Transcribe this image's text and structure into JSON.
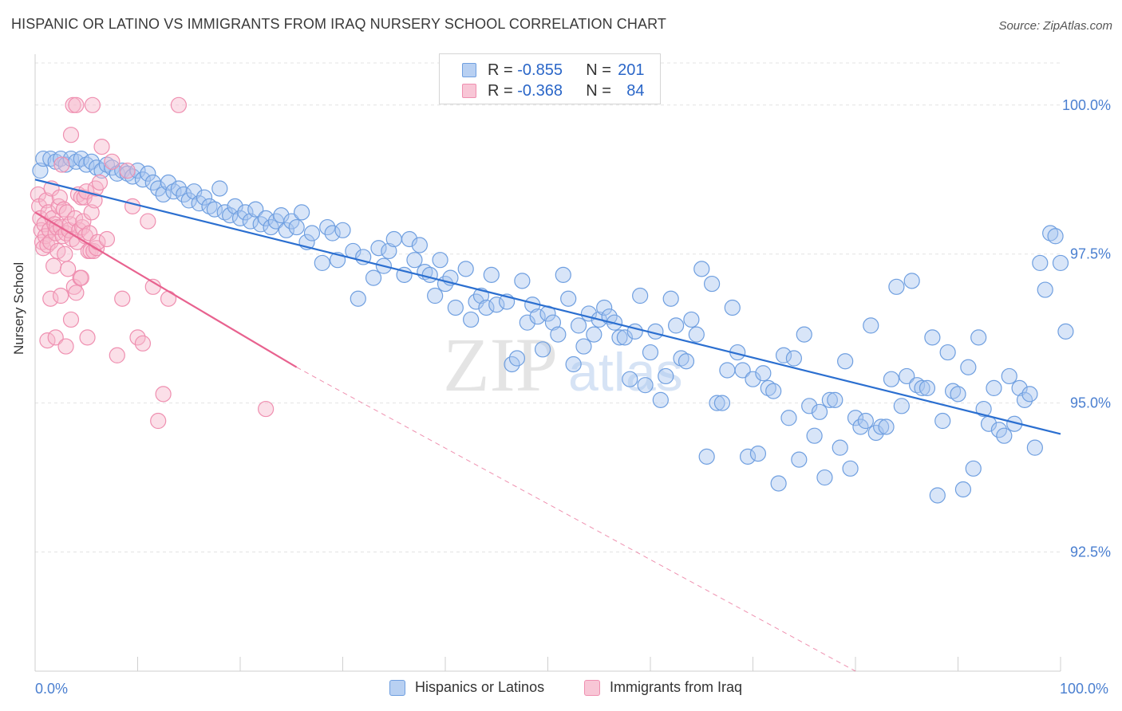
{
  "title": "HISPANIC OR LATINO VS IMMIGRANTS FROM IRAQ NURSERY SCHOOL CORRELATION CHART",
  "source": "Source: ZipAtlas.com",
  "watermark": {
    "zip": "ZIP",
    "atlas": "atlas"
  },
  "legend": {
    "r_label": "R =",
    "n_label": "N =",
    "series": [
      {
        "r": "-0.855",
        "n": "201"
      },
      {
        "r": "-0.368",
        "n": "84"
      }
    ]
  },
  "chart_data": {
    "type": "scatter",
    "title": "HISPANIC OR LATINO VS IMMIGRANTS FROM IRAQ NURSERY SCHOOL CORRELATION CHART",
    "xlabel": "",
    "ylabel": "Nursery School",
    "xlim": [
      0,
      100
    ],
    "ylim": [
      90.5,
      100.8
    ],
    "x_tick_labels": [
      "0.0%",
      "100.0%"
    ],
    "y_ticks": [
      92.5,
      95.0,
      97.5,
      100.0
    ],
    "y_tick_labels": [
      "92.5%",
      "95.0%",
      "97.5%",
      "100.0%"
    ],
    "series": [
      {
        "name": "Hispanics or Latinos",
        "color": "#6f9fe0",
        "fill": "#a9c6f0",
        "line_color": "#2b6fd0",
        "trend": {
          "x0": 0,
          "y0": 98.75,
          "x1": 100,
          "y1": 94.48
        },
        "points": [
          [
            0.5,
            98.9
          ],
          [
            0.8,
            99.1
          ],
          [
            1.5,
            99.1
          ],
          [
            2,
            99.05
          ],
          [
            2.5,
            99.1
          ],
          [
            3,
            99.0
          ],
          [
            3.5,
            99.1
          ],
          [
            4,
            99.05
          ],
          [
            4.5,
            99.1
          ],
          [
            5,
            99.0
          ],
          [
            5.5,
            99.05
          ],
          [
            6,
            98.95
          ],
          [
            6.5,
            98.9
          ],
          [
            7,
            99.0
          ],
          [
            7.5,
            98.95
          ],
          [
            8,
            98.85
          ],
          [
            8.5,
            98.9
          ],
          [
            9,
            98.85
          ],
          [
            9.5,
            98.8
          ],
          [
            10,
            98.9
          ],
          [
            10.5,
            98.75
          ],
          [
            11,
            98.85
          ],
          [
            11.5,
            98.7
          ],
          [
            12,
            98.6
          ],
          [
            12.5,
            98.5
          ],
          [
            13,
            98.7
          ],
          [
            13.5,
            98.55
          ],
          [
            14,
            98.6
          ],
          [
            14.5,
            98.5
          ],
          [
            15,
            98.4
          ],
          [
            15.5,
            98.55
          ],
          [
            16,
            98.35
          ],
          [
            16.5,
            98.45
          ],
          [
            17,
            98.3
          ],
          [
            17.5,
            98.25
          ],
          [
            18,
            98.6
          ],
          [
            18.5,
            98.2
          ],
          [
            19,
            98.15
          ],
          [
            19.5,
            98.3
          ],
          [
            20,
            98.1
          ],
          [
            20.5,
            98.2
          ],
          [
            21,
            98.05
          ],
          [
            21.5,
            98.25
          ],
          [
            22,
            98.0
          ],
          [
            22.5,
            98.1
          ],
          [
            23,
            97.95
          ],
          [
            23.5,
            98.05
          ],
          [
            24,
            98.15
          ],
          [
            24.5,
            97.9
          ],
          [
            25,
            98.05
          ],
          [
            25.5,
            97.95
          ],
          [
            26,
            98.2
          ],
          [
            26.5,
            97.7
          ],
          [
            27,
            97.85
          ],
          [
            28,
            97.35
          ],
          [
            28.5,
            97.95
          ],
          [
            29,
            97.85
          ],
          [
            29.5,
            97.4
          ],
          [
            30,
            97.9
          ],
          [
            31,
            97.55
          ],
          [
            31.5,
            96.75
          ],
          [
            32,
            97.45
          ],
          [
            33,
            97.1
          ],
          [
            33.5,
            97.6
          ],
          [
            34,
            97.3
          ],
          [
            34.5,
            97.55
          ],
          [
            35,
            97.75
          ],
          [
            36,
            97.15
          ],
          [
            36.5,
            97.75
          ],
          [
            37,
            97.4
          ],
          [
            37.5,
            97.65
          ],
          [
            38,
            97.2
          ],
          [
            38.5,
            97.15
          ],
          [
            39,
            96.8
          ],
          [
            39.5,
            97.4
          ],
          [
            40,
            97.0
          ],
          [
            40.5,
            97.1
          ],
          [
            41,
            96.6
          ],
          [
            42,
            97.25
          ],
          [
            42.5,
            96.4
          ],
          [
            43,
            96.7
          ],
          [
            43.5,
            96.8
          ],
          [
            44,
            96.6
          ],
          [
            44.5,
            97.15
          ],
          [
            45,
            96.65
          ],
          [
            46,
            96.7
          ],
          [
            46.5,
            95.65
          ],
          [
            47,
            95.75
          ],
          [
            47.5,
            97.05
          ],
          [
            48,
            96.35
          ],
          [
            48.5,
            96.65
          ],
          [
            49,
            96.45
          ],
          [
            49.5,
            95.9
          ],
          [
            50,
            96.5
          ],
          [
            50.5,
            96.35
          ],
          [
            51,
            96.15
          ],
          [
            51.5,
            97.15
          ],
          [
            52,
            96.75
          ],
          [
            52.5,
            95.65
          ],
          [
            53,
            96.3
          ],
          [
            53.5,
            95.95
          ],
          [
            54,
            96.5
          ],
          [
            54.5,
            96.15
          ],
          [
            55,
            96.4
          ],
          [
            55.5,
            96.6
          ],
          [
            56,
            96.45
          ],
          [
            56.5,
            96.35
          ],
          [
            57,
            96.1
          ],
          [
            57.5,
            96.1
          ],
          [
            58,
            95.4
          ],
          [
            58.5,
            96.2
          ],
          [
            59,
            96.8
          ],
          [
            59.5,
            95.3
          ],
          [
            60,
            95.85
          ],
          [
            60.5,
            96.2
          ],
          [
            61,
            95.05
          ],
          [
            61.5,
            95.45
          ],
          [
            62,
            96.75
          ],
          [
            62.5,
            96.3
          ],
          [
            63,
            95.75
          ],
          [
            63.5,
            95.7
          ],
          [
            64,
            96.4
          ],
          [
            64.5,
            96.15
          ],
          [
            65,
            97.25
          ],
          [
            65.5,
            94.1
          ],
          [
            66,
            97.0
          ],
          [
            66.5,
            95.0
          ],
          [
            67,
            95.0
          ],
          [
            67.5,
            95.55
          ],
          [
            68,
            96.6
          ],
          [
            68.5,
            95.85
          ],
          [
            69,
            95.55
          ],
          [
            69.5,
            94.1
          ],
          [
            70,
            95.4
          ],
          [
            70.5,
            94.15
          ],
          [
            71,
            95.5
          ],
          [
            71.5,
            95.25
          ],
          [
            72,
            95.2
          ],
          [
            72.5,
            93.65
          ],
          [
            73,
            95.8
          ],
          [
            73.5,
            94.75
          ],
          [
            74,
            95.75
          ],
          [
            74.5,
            94.05
          ],
          [
            75,
            96.15
          ],
          [
            75.5,
            94.95
          ],
          [
            76,
            94.45
          ],
          [
            76.5,
            94.85
          ],
          [
            77,
            93.75
          ],
          [
            77.5,
            95.05
          ],
          [
            78,
            95.05
          ],
          [
            78.5,
            94.25
          ],
          [
            79,
            95.7
          ],
          [
            79.5,
            93.9
          ],
          [
            80,
            94.75
          ],
          [
            80.5,
            94.6
          ],
          [
            81,
            94.7
          ],
          [
            81.5,
            96.3
          ],
          [
            82,
            94.5
          ],
          [
            82.5,
            94.6
          ],
          [
            83,
            94.6
          ],
          [
            83.5,
            95.4
          ],
          [
            84,
            96.95
          ],
          [
            84.5,
            94.95
          ],
          [
            85,
            95.45
          ],
          [
            85.5,
            97.05
          ],
          [
            86,
            95.3
          ],
          [
            86.5,
            95.25
          ],
          [
            87,
            95.25
          ],
          [
            87.5,
            96.1
          ],
          [
            88,
            93.45
          ],
          [
            88.5,
            94.7
          ],
          [
            89,
            95.85
          ],
          [
            89.5,
            95.2
          ],
          [
            90,
            95.15
          ],
          [
            90.5,
            93.55
          ],
          [
            91,
            95.6
          ],
          [
            91.5,
            93.9
          ],
          [
            92,
            96.1
          ],
          [
            92.5,
            94.9
          ],
          [
            93,
            94.65
          ],
          [
            93.5,
            95.25
          ],
          [
            94,
            94.55
          ],
          [
            94.5,
            94.45
          ],
          [
            95,
            95.45
          ],
          [
            95.5,
            94.65
          ],
          [
            96,
            95.25
          ],
          [
            96.5,
            95.05
          ],
          [
            97,
            95.15
          ],
          [
            97.5,
            94.25
          ],
          [
            98,
            97.35
          ],
          [
            98.5,
            96.9
          ],
          [
            99,
            97.85
          ],
          [
            99.5,
            97.8
          ],
          [
            100,
            97.35
          ],
          [
            100.5,
            96.2
          ]
        ]
      },
      {
        "name": "Immigrants from Iraq",
        "color": "#ef8fb0",
        "fill": "#f6b9cd",
        "line_color": "#e8628f",
        "trend": {
          "x0": 0,
          "y0": 98.2,
          "x1": 25.5,
          "y1": 95.6
        },
        "trend_dashed": {
          "x0": 25.5,
          "y0": 95.6,
          "x1": 80,
          "y1": 90.5
        },
        "points": [
          [
            0.3,
            98.5
          ],
          [
            0.4,
            98.3
          ],
          [
            0.5,
            98.1
          ],
          [
            0.6,
            97.9
          ],
          [
            0.7,
            97.7
          ],
          [
            0.8,
            97.6
          ],
          [
            0.9,
            98.0
          ],
          [
            1.0,
            97.8
          ],
          [
            1.1,
            98.4
          ],
          [
            1.2,
            97.65
          ],
          [
            1.3,
            98.2
          ],
          [
            1.4,
            97.9
          ],
          [
            1.5,
            97.7
          ],
          [
            1.6,
            98.6
          ],
          [
            1.7,
            98.1
          ],
          [
            1.8,
            97.3
          ],
          [
            1.9,
            98.0
          ],
          [
            2.0,
            97.85
          ],
          [
            2.1,
            97.95
          ],
          [
            2.2,
            97.55
          ],
          [
            2.3,
            98.3
          ],
          [
            2.4,
            98.45
          ],
          [
            2.5,
            97.95
          ],
          [
            2.6,
            99.0
          ],
          [
            2.7,
            97.8
          ],
          [
            2.8,
            98.25
          ],
          [
            2.9,
            97.5
          ],
          [
            3.0,
            97.85
          ],
          [
            3.1,
            98.2
          ],
          [
            3.2,
            97.25
          ],
          [
            3.3,
            97.9
          ],
          [
            3.4,
            98.0
          ],
          [
            3.5,
            99.5
          ],
          [
            3.6,
            97.75
          ],
          [
            3.7,
            100.0
          ],
          [
            3.8,
            96.95
          ],
          [
            3.9,
            98.1
          ],
          [
            4.0,
            100.0
          ],
          [
            4.1,
            97.7
          ],
          [
            4.2,
            98.5
          ],
          [
            4.3,
            97.9
          ],
          [
            4.4,
            97.1
          ],
          [
            4.5,
            98.45
          ],
          [
            4.6,
            97.95
          ],
          [
            4.7,
            98.05
          ],
          [
            4.8,
            98.45
          ],
          [
            4.9,
            97.8
          ],
          [
            5.0,
            98.55
          ],
          [
            5.1,
            96.1
          ],
          [
            5.2,
            97.55
          ],
          [
            5.3,
            97.85
          ],
          [
            5.4,
            97.55
          ],
          [
            5.5,
            98.2
          ],
          [
            5.6,
            100.0
          ],
          [
            5.7,
            97.55
          ],
          [
            5.8,
            98.4
          ],
          [
            5.9,
            98.6
          ],
          [
            6.0,
            97.6
          ],
          [
            6.1,
            97.7
          ],
          [
            6.3,
            98.7
          ],
          [
            6.5,
            99.3
          ],
          [
            7.0,
            97.75
          ],
          [
            7.5,
            99.05
          ],
          [
            8.0,
            95.8
          ],
          [
            8.5,
            96.75
          ],
          [
            9.0,
            98.9
          ],
          [
            9.5,
            98.3
          ],
          [
            10.0,
            96.1
          ],
          [
            10.5,
            96.0
          ],
          [
            11.0,
            98.05
          ],
          [
            11.5,
            96.95
          ],
          [
            12.0,
            94.7
          ],
          [
            12.5,
            95.15
          ],
          [
            13.0,
            96.75
          ],
          [
            14.0,
            100.0
          ],
          [
            22.5,
            94.9
          ],
          [
            1.2,
            96.05
          ],
          [
            1.5,
            96.75
          ],
          [
            2.0,
            96.1
          ],
          [
            2.5,
            96.8
          ],
          [
            3.0,
            95.95
          ],
          [
            3.5,
            96.4
          ],
          [
            4.0,
            96.85
          ],
          [
            4.5,
            97.1
          ]
        ]
      }
    ]
  },
  "bottom_legend": [
    {
      "label": "Hispanics or Latinos"
    },
    {
      "label": "Immigrants from Iraq"
    }
  ]
}
